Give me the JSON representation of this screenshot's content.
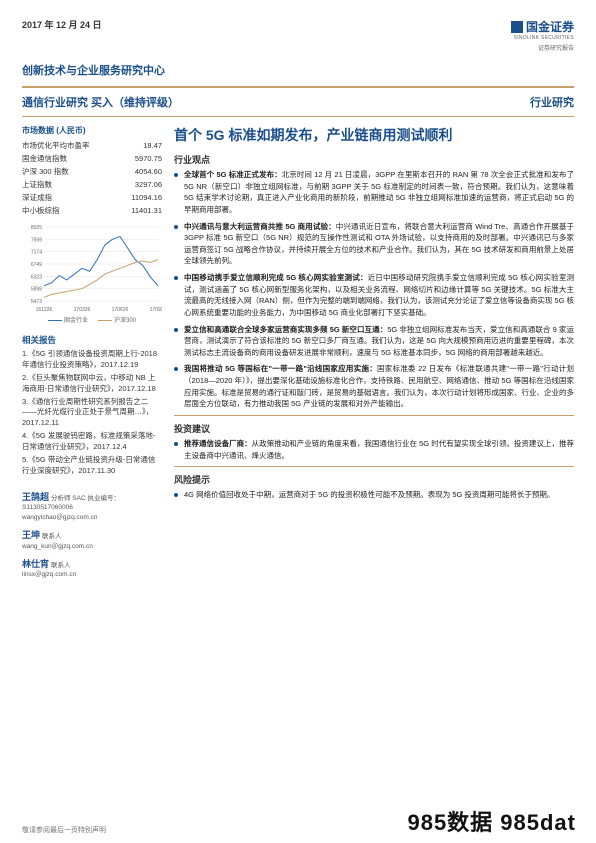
{
  "colors": {
    "brand": "#1b4f8b",
    "accent_rule": "#c9a06a",
    "text": "#333333",
    "series1": "#2e6eb5",
    "series2": "#c9a06a",
    "bg": "#ffffff"
  },
  "header": {
    "date": "2017 年 12 月 24 日",
    "logo_cn": "国金证券",
    "logo_en": "SINOLINK SECURITIES",
    "logo_tag": "证券研究报告",
    "center": "创新技术与企业服务研究中心",
    "left_sub": "通信行业研究  买入（维持评级）",
    "right_sub": "行业研究"
  },
  "market": {
    "title": "市场数据 (人民币)",
    "rows": [
      {
        "label": "市场优化平均市盈率",
        "value": "18.47"
      },
      {
        "label": "国金通信指数",
        "value": "5970.75"
      },
      {
        "label": "沪深 300 指数",
        "value": "4054.60"
      },
      {
        "label": "上证指数",
        "value": "3297.06"
      },
      {
        "label": "深证成指",
        "value": "11094.16"
      },
      {
        "label": "中小板综指",
        "value": "11401.31"
      }
    ]
  },
  "chart": {
    "type": "line",
    "x_labels": [
      "161226",
      "170326",
      "170626",
      "170926"
    ],
    "y_ticks": [
      5473,
      5898,
      6323,
      6749,
      7174,
      7599,
      8025
    ],
    "ylim": [
      5473,
      8025
    ],
    "series": [
      {
        "name": "国金行业",
        "color": "#2e6eb5",
        "values": [
          6000,
          6100,
          6350,
          6200,
          6400,
          6600,
          6500,
          6900,
          7400,
          7600,
          7700,
          7300,
          6900,
          6700,
          6300,
          6000
        ]
      },
      {
        "name": "沪深300",
        "color": "#c9a06a",
        "values": [
          5600,
          5700,
          5750,
          5800,
          5850,
          5900,
          6050,
          6200,
          6400,
          6500,
          6600,
          6700,
          6800,
          6850,
          6800,
          6900
        ]
      }
    ],
    "legend": [
      "国金行业",
      "沪深300"
    ],
    "grid_color": "#e6e6e6",
    "axis_font": 5
  },
  "related": {
    "title": "相关报告",
    "items": [
      "1.《5G 引领通信设备投资周期上行-2018 年通信行业投资策略》，2017.12.19",
      "2.《巨头聚焦物联网中云，中移动 NB 上海商用-日常通信行业研究》，2017.12.18",
      "3.《通信行业周期性研究系列报告之二——光纤光缆行业正处于景气周期…》，2017.12.11",
      "4.《5G 发展驶钨密路，标准规策采落地-日常通信行业研究》，2017.12.4",
      "5.《5G 带动全产业链投资升级-日常通信行业深度研究》，2017.11.30"
    ]
  },
  "authors": [
    {
      "name": "王鹄超",
      "role": "分析师 SAC 执业编号：S1130517060006",
      "email": "wangyichao＠gjzq.com.cn"
    },
    {
      "name": "王坤",
      "role": "联系人",
      "email": "wang_kun＠gjzq.com.cn"
    },
    {
      "name": "林仕宵",
      "role": "联系人",
      "email": "linsx＠gjzq.com.cn"
    }
  ],
  "main": {
    "title": "首个 5G 标准如期发布，产业链商用测试顺利",
    "sections": [
      {
        "heading": "行业观点",
        "bullets": [
          {
            "lead": "全球首个 5G 标准正式发布：",
            "body": "北京时间 12 月 21 日凌晨，3GPP 在里斯本召开的 RAN 第 78 次全会正式批准和发布了 5G NR（新空口）非独立组网标准，与前期 3GPP 关于 5G 标准制定的时间表一致，符合预期。我们认为，这意味着 5G 结束学术讨论期，真正进入产业化商用的新阶段，前期推动 5G 非独立组网标准加速的运营商，将正式启动 5G 的早期商用部署。"
          },
          {
            "lead": "中兴通讯与意大利运营商共推 5G 商用试验：",
            "body": "中兴通讯近日宣布，将联合意大利运营商 Wind Tre、高通合作开展基于 3GPP 标准 5G 新空口（5G NR）规范的互操作性测试和 OTA 外场试验，以支持商用的及时部署。中兴通讯已与多家运营商签订 5G 战略合作协议，并持续开展全方位的技术和产业合作。我们认为，其在 5G 技术研发和商用前景上处居全球领先前列。"
          },
          {
            "lead": "中国移动携手爱立信顺利完成 5G 核心网实验室测试：",
            "body": "近日中国移动研究院携手爱立信顺利完成 5G 核心网实验室测试，测试涵盖了 5G 核心网新型服务化架构，以及相关业务流程、网络切片和边缘计算等 5G 关键技术。5G 标准大主流最高的无线接入网（RAN）侧，但作为完整的端到端网络，我们认为，该测试充分论证了爱立信等设备商实现 5G 核心网系统重要功能的业务能力，为中国移动 5G 商业化部署打下坚实基础。"
          },
          {
            "lead": "爱立信和高通联合全球多家运营商实现多频 5G 新空口互通：",
            "body": "5G 非独立组网标准发布当天，爱立信和高通联合 9 家运营商，测试演示了符合该标准的 5G 新空口多厂商互通。我们认为，这是 5G 向大规模预商用迈进的重要里程碑，本次测试标志主流设备商的商用设备研发进展非常顺利，速度与 5G 标准基本同步，5G 网络的商用部署越来越近。"
          },
          {
            "lead": "我国将推动 5G 等国标在\"一带一路\"沿线国家应用实施：",
            "body": "国家标准委 22 日发布《标准联通共建\"一带一路\"行动计划（2018—2020 年）》，提出要深化基础设施标准化合作，支持铁路、民用航空、网络通信、推动 5G 等国标在沿线国家应用实施。标准是贸易的通行证和敲门砖，是贸易的基础语言。我们认为，本次行动计划将形成国家、行业、企业的多层面全方位联动，有力推动我国 5G 产业链的发展和对外产能输出。"
          }
        ]
      },
      {
        "heading": "投资建议",
        "bullets": [
          {
            "lead": "推荐通信设备厂商：",
            "body": "从政策推动和产业链的角度来看，我国通信行业在 5G 时代有望实现全球引领。投资建议上，推荐主设备商中兴通讯、烽火通信。"
          }
        ]
      },
      {
        "heading": "风险提示",
        "bullets": [
          {
            "lead": "",
            "body": "4G 网络价值回收处于中期，运营商对于 5G 的投资积极性可能不及预期。表现为 5G 投资周期可能将长于预期。"
          }
        ]
      }
    ]
  },
  "footer": {
    "left": "敬请参阅最后一页特别声明",
    "right_watermark": "985数据 985dat"
  }
}
